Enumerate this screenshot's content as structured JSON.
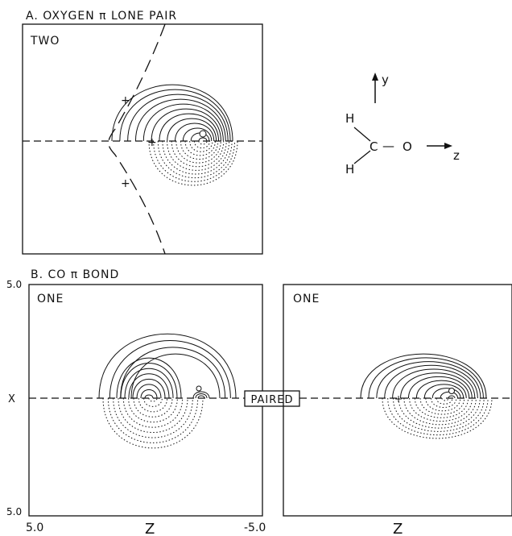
{
  "panel_a": {
    "title": "A. OXYGEN π LONE PAIR",
    "orbital_label": "TWO"
  },
  "panel_b": {
    "title": "B. CO π BOND",
    "left_label": "ONE",
    "right_label": "ONE",
    "paired_label": "PAIRED"
  },
  "molecule": {
    "h_top": "H",
    "h_bottom": "H",
    "carbon": "C",
    "bond": "—",
    "oxygen": "O",
    "y_axis": "y",
    "z_axis": "z"
  },
  "axes": {
    "x_label_left": "X",
    "y_top_tick": "5.0",
    "y_bottom_tick": "5.0",
    "x_tick_left": "5.0",
    "x_tick_right": "-5.0",
    "z_label_left": "Z",
    "z_label_right": "Z"
  },
  "colors": {
    "ink": "#111111",
    "background": "#ffffff"
  }
}
